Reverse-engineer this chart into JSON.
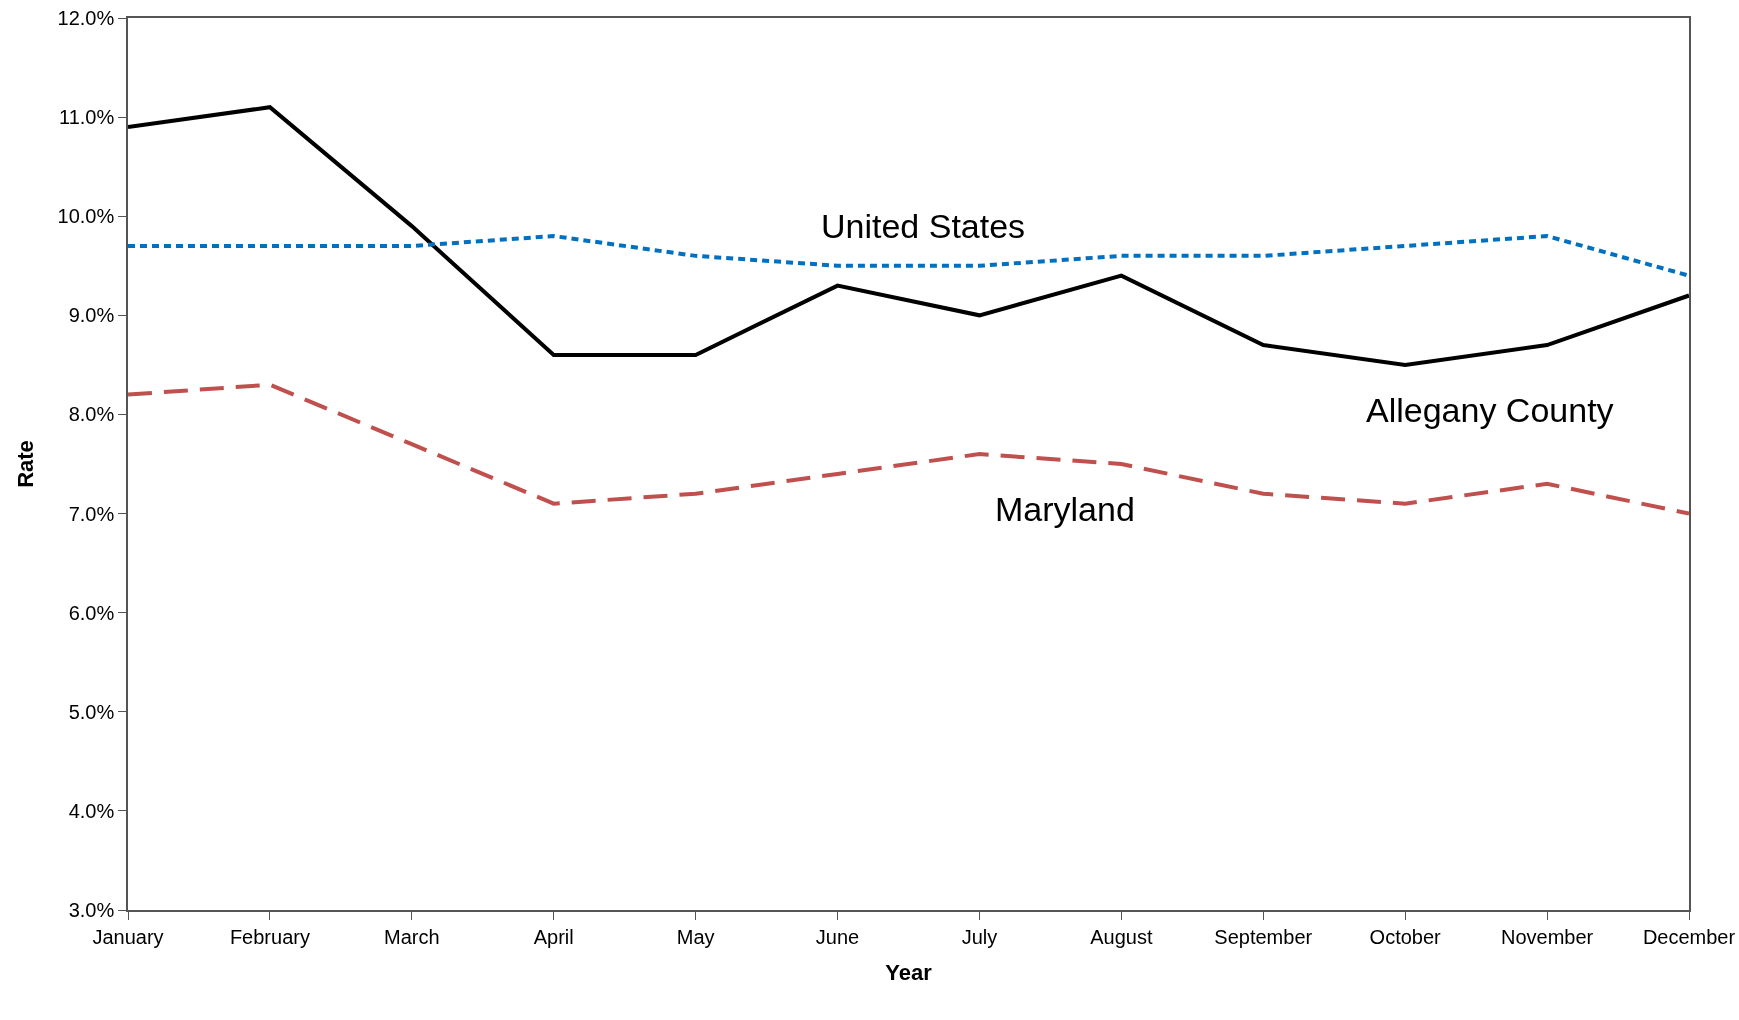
{
  "chart_data": {
    "type": "line",
    "xlabel": "Year",
    "ylabel": "Rate",
    "categories": [
      "January",
      "February",
      "March",
      "April",
      "May",
      "June",
      "July",
      "August",
      "September",
      "October",
      "November",
      "December"
    ],
    "series": [
      {
        "name": "Allegany County",
        "color": "#000000",
        "line_style": "solid",
        "values": [
          10.9,
          11.1,
          9.9,
          8.6,
          8.6,
          9.3,
          9.0,
          9.4,
          8.7,
          8.5,
          8.7,
          9.2
        ]
      },
      {
        "name": "United States",
        "color": "#0070c0",
        "line_style": "dotted",
        "values": [
          9.7,
          9.7,
          9.7,
          9.8,
          9.6,
          9.5,
          9.5,
          9.6,
          9.6,
          9.7,
          9.8,
          9.4
        ]
      },
      {
        "name": "Maryland",
        "color": "#c0504d",
        "line_style": "dashed",
        "values": [
          8.2,
          8.3,
          7.7,
          7.1,
          7.2,
          7.4,
          7.6,
          7.5,
          7.2,
          7.1,
          7.3,
          7.0
        ]
      }
    ],
    "ylim": [
      3,
      12
    ],
    "yticks": [
      {
        "value": 3,
        "label": "3.0%"
      },
      {
        "value": 4,
        "label": "4.0%"
      },
      {
        "value": 5,
        "label": "5.0%"
      },
      {
        "value": 6,
        "label": "6.0%"
      },
      {
        "value": 7,
        "label": "7.0%"
      },
      {
        "value": 8,
        "label": "8.0%"
      },
      {
        "value": 9,
        "label": "9.0%"
      },
      {
        "value": 10,
        "label": "10.0%"
      },
      {
        "value": 11,
        "label": "11.0%"
      },
      {
        "value": 12,
        "label": "12.0%"
      }
    ],
    "grid": false,
    "legend": false,
    "marker": "none"
  }
}
